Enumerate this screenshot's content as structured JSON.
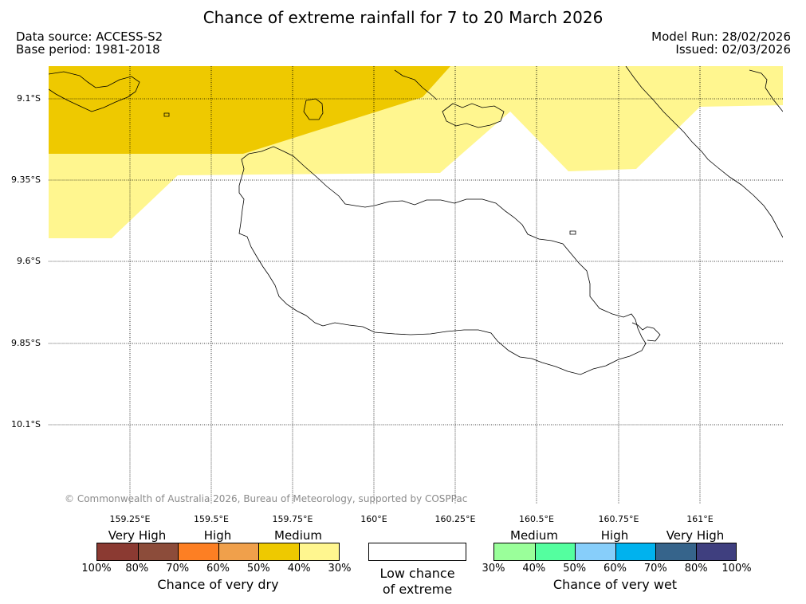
{
  "title": "Chance of extreme rainfall for 7 to 20 March 2026",
  "data_source": "Data source: ACCESS-S2",
  "base_period": "Base period: 1981-2018",
  "model_run": "Model Run: 28/02/2026",
  "issued": "Issued: 02/03/2026",
  "copyright": "© Commonwealth of Australia 2026, Bureau of Meteorology, supported by COSPPac",
  "lat_labels": [
    "9.1°S",
    "9.35°S",
    "9.6°S",
    "9.85°S",
    "10.1°S"
  ],
  "lon_labels": [
    "159.25°E",
    "159.5°E",
    "159.75°E",
    "160°E",
    "160.25°E",
    "160.5°E",
    "160.75°E",
    "161°E"
  ],
  "dry_legend": {
    "categories": [
      "Very High",
      "High",
      "Medium"
    ],
    "ticks": [
      "100%",
      "80%",
      "70%",
      "60%",
      "50%",
      "40%",
      "30%"
    ],
    "colors": [
      "#8b3a32",
      "#8c4c3a",
      "#fd7f23",
      "#f0a04b",
      "#eec900",
      "#fff68f"
    ],
    "title": "Chance of very dry"
  },
  "neutral_legend": {
    "title_line1": "Low chance",
    "title_line2": "of extreme"
  },
  "wet_legend": {
    "categories": [
      "Medium",
      "High",
      "Very High"
    ],
    "ticks": [
      "30%",
      "40%",
      "50%",
      "60%",
      "70%",
      "80%",
      "100%"
    ],
    "colors": [
      "#9aff9a",
      "#54ff9f",
      "#87cefa",
      "#00b2ee",
      "#36648b",
      "#3f3f7f"
    ],
    "title": "Chance of very wet"
  },
  "shading_colors": {
    "medium_dry": "#eec900",
    "low_dry": "#fff68f"
  }
}
